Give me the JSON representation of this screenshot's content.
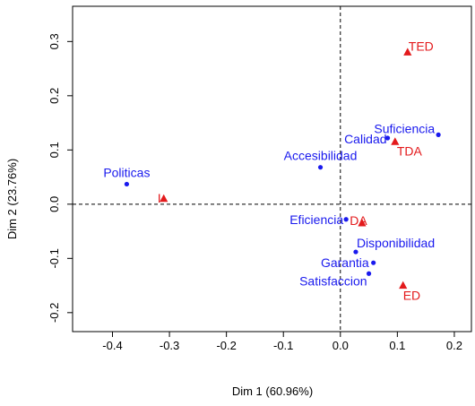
{
  "chart_data": {
    "type": "scatter",
    "title": "",
    "xlabel": "Dim 1 (60.96%)",
    "ylabel": "Dim 2 (23.76%)",
    "xlim": [
      -0.47,
      0.23
    ],
    "ylim": [
      -0.235,
      0.365
    ],
    "x_ticks": [
      {
        "value": -0.4,
        "label": "-0.4"
      },
      {
        "value": -0.3,
        "label": "-0.3"
      },
      {
        "value": -0.2,
        "label": "-0.2"
      },
      {
        "value": -0.1,
        "label": "-0.1"
      },
      {
        "value": 0.0,
        "label": "0.0"
      },
      {
        "value": 0.1,
        "label": "0.1"
      },
      {
        "value": 0.2,
        "label": "0.2"
      }
    ],
    "y_ticks": [
      {
        "value": -0.2,
        "label": "-0.2"
      },
      {
        "value": -0.1,
        "label": "-0.1"
      },
      {
        "value": 0.0,
        "label": "0.0"
      },
      {
        "value": 0.1,
        "label": "0.1"
      },
      {
        "value": 0.2,
        "label": "0.2"
      },
      {
        "value": 0.3,
        "label": "0.3"
      }
    ],
    "reference_lines": {
      "x": 0,
      "y": 0,
      "style": "dashed"
    },
    "grid": false,
    "colors": {
      "row_points": "#1a1aee",
      "col_points": "#e31a1c",
      "axis": "#000000"
    },
    "series": [
      {
        "marker": "circle",
        "color": "#1a1aee",
        "points": [
          {
            "label": "Politicas",
            "x": -0.375,
            "y": 0.037,
            "label_anchor": "middle",
            "label_dx": 0,
            "label_dy": -8
          },
          {
            "label": "Accesibilidad",
            "x": -0.035,
            "y": 0.068,
            "label_anchor": "middle",
            "label_dx": 0,
            "label_dy": -8
          },
          {
            "label": "Calidad",
            "x": 0.083,
            "y": 0.122,
            "label_anchor": "end",
            "label_dx": -1,
            "label_dy": 6
          },
          {
            "label": "Suficiencia",
            "x": 0.172,
            "y": 0.128,
            "label_anchor": "end",
            "label_dx": -4,
            "label_dy": -2
          },
          {
            "label": "Eficiencia",
            "x": 0.01,
            "y": -0.028,
            "label_anchor": "end",
            "label_dx": -3,
            "label_dy": 5
          },
          {
            "label": "Disponibilidad",
            "x": 0.027,
            "y": -0.088,
            "label_anchor": "start",
            "label_dx": 1,
            "label_dy": -5
          },
          {
            "label": "Garantia",
            "x": 0.058,
            "y": -0.108,
            "label_anchor": "end",
            "label_dx": -5,
            "label_dy": 5
          },
          {
            "label": "Satisfaccion",
            "x": 0.05,
            "y": -0.128,
            "label_anchor": "end",
            "label_dx": -2,
            "label_dy": 13
          }
        ]
      },
      {
        "marker": "triangle",
        "color": "#e31a1c",
        "points": [
          {
            "label": "TED",
            "x": 0.118,
            "y": 0.28,
            "label_anchor": "start",
            "label_dx": 1,
            "label_dy": -2
          },
          {
            "label": "TDA",
            "x": 0.096,
            "y": 0.115,
            "label_anchor": "start",
            "label_dx": 2,
            "label_dy": 15
          },
          {
            "label": "I",
            "x": -0.31,
            "y": 0.01,
            "label_anchor": "middle",
            "label_dx": -5,
            "label_dy": 4
          },
          {
            "label": "DA",
            "x": 0.038,
            "y": -0.035,
            "label_anchor": "middle",
            "label_dx": -4,
            "label_dy": 2
          },
          {
            "label": "ED",
            "x": 0.11,
            "y": -0.15,
            "label_anchor": "start",
            "label_dx": 0,
            "label_dy": 16
          }
        ]
      }
    ]
  }
}
